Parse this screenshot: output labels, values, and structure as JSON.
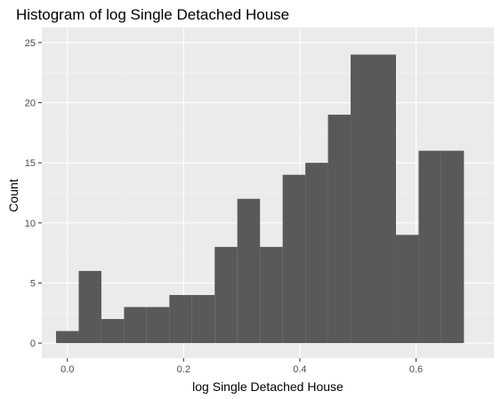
{
  "chart_data": {
    "type": "bar",
    "title": "Histogram of log Single Detached House",
    "xlabel": "log Single Detached House",
    "ylabel": "Count",
    "xlim": [
      -0.044,
      0.734
    ],
    "ylim": [
      -1.25,
      26.25
    ],
    "x_ticks": [
      {
        "value": 0.0,
        "label": "0.0"
      },
      {
        "value": 0.2,
        "label": "0.2"
      },
      {
        "value": 0.4,
        "label": "0.4"
      },
      {
        "value": 0.6,
        "label": "0.6"
      }
    ],
    "y_ticks": [
      {
        "value": 0,
        "label": "0"
      },
      {
        "value": 5,
        "label": "5"
      },
      {
        "value": 10,
        "label": "10"
      },
      {
        "value": 15,
        "label": "15"
      },
      {
        "value": 20,
        "label": "20"
      },
      {
        "value": 25,
        "label": "25"
      }
    ],
    "bin_edges": [
      -0.0195,
      0.0195,
      0.0585,
      0.0975,
      0.1365,
      0.1755,
      0.2145,
      0.2535,
      0.2925,
      0.3315,
      0.3705,
      0.4095,
      0.4485,
      0.4875,
      0.5265,
      0.5655,
      0.6045,
      0.6435,
      0.6825
    ],
    "counts": [
      1,
      6,
      2,
      3,
      3,
      4,
      4,
      8,
      12,
      8,
      14,
      15,
      19,
      24,
      24,
      9,
      16,
      16
    ],
    "grid": true,
    "colors": {
      "bar": "#595959",
      "panel": "#ebebeb",
      "grid_major": "#ffffff",
      "grid_minor": "#f5f5f5",
      "tick": "#333333"
    }
  }
}
